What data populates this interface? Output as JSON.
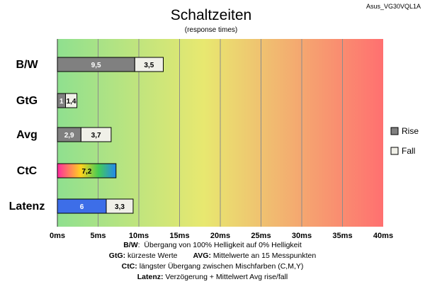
{
  "chart_data": {
    "type": "bar",
    "orientation": "horizontal",
    "stacked": true,
    "title": "Schaltzeiten",
    "subtitle": "(response times)",
    "model": "Asus_VG30VQL1A",
    "categories": [
      "B/W",
      "GtG",
      "Avg",
      "CtC",
      "Latenz"
    ],
    "series": [
      {
        "name": "Rise",
        "values": [
          9.5,
          1,
          2.9,
          null,
          6
        ],
        "labels": [
          "9,5",
          "1",
          "2,9",
          "",
          "6"
        ]
      },
      {
        "name": "Fall",
        "values": [
          3.5,
          1.4,
          3.7,
          null,
          3.3
        ],
        "labels": [
          "3,5",
          "1,4",
          "3,7",
          "",
          "3,3"
        ]
      }
    ],
    "ctc": {
      "value": 7.2,
      "label": "7,2"
    },
    "x_ticks": [
      "0ms",
      "5ms",
      "10ms",
      "15ms",
      "20ms",
      "25ms",
      "30ms",
      "35ms",
      "40ms"
    ],
    "xlim": [
      0,
      40
    ],
    "grid": true,
    "legend": "right",
    "colors": {
      "rise": "#808080",
      "fall": "#f0f0e8",
      "latenz_rise": "#3d6ee8",
      "background_start": "#8fe08f",
      "background_mid": "#e8e870",
      "background_end": "#ff7070",
      "ctc_gradient": [
        "#ff2aa0",
        "#ffd21e",
        "#44cc55",
        "#2288ee"
      ]
    }
  },
  "notes": {
    "bw_key": "B/W",
    "bw_text": "Übergang von 100% Helligkeit auf 0% Helligkeit",
    "gtg_key": "GtG:",
    "gtg_text": "kürzeste Werte",
    "avg_key": "AVG:",
    "avg_text": "Mittelwerte an 15 Messpunkten",
    "ctc_key": "CtC:",
    "ctc_text": "längster Übergang zwischen Mischfarben (C,M,Y)",
    "latenz_key": "Latenz:",
    "latenz_text": "Verzögerung + Mittelwert Avg rise/fall"
  }
}
